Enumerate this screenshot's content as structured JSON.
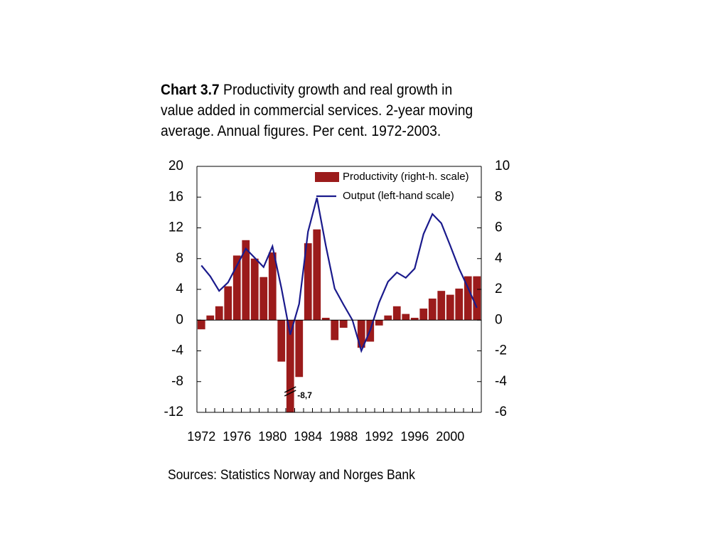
{
  "chart_data": {
    "type": "bar_line",
    "title_label": "Chart 3.7",
    "title": "Productivity growth and real growth in value added in commercial services. 2-year moving average. Annual figures. Per cent. 1972-2003.",
    "categories": [
      "1972",
      null,
      null,
      null,
      "1976",
      null,
      null,
      null,
      "1980",
      null,
      null,
      null,
      "1984",
      null,
      null,
      null,
      "1988",
      null,
      null,
      null,
      "1992",
      null,
      null,
      null,
      "1996",
      null,
      null,
      null,
      "2000",
      null,
      null,
      null
    ],
    "series": [
      {
        "name": "Productivity (right-h. scale)",
        "color": "#9b1b1b",
        "kind": "bar",
        "axis": "y2",
        "values": [
          -0.6,
          0.3,
          0.9,
          2.2,
          4.2,
          5.2,
          4.0,
          2.8,
          4.4,
          -2.7,
          -8.7,
          -3.7,
          5.0,
          5.9,
          0.15,
          -1.3,
          -0.5,
          0,
          -1.8,
          -1.4,
          -0.35,
          0.3,
          0.9,
          0.4,
          0.15,
          0.75,
          1.4,
          1.9,
          1.65,
          2.05,
          2.85,
          2.85
        ],
        "value_labels": [
          null,
          null,
          null,
          null,
          null,
          null,
          null,
          null,
          null,
          null,
          "-8,7",
          null,
          null,
          null,
          null,
          null,
          null,
          null,
          null,
          null,
          null,
          null,
          null,
          null,
          null,
          null,
          null,
          null,
          null,
          null,
          null,
          null
        ]
      },
      {
        "name": "Output (left-hand scale)",
        "color": "#1a1a8c",
        "kind": "line",
        "values": [
          7.1,
          5.7,
          3.8,
          4.9,
          7.1,
          9.3,
          8.1,
          6.9,
          9.6,
          4.2,
          -1.9,
          2.1,
          11.5,
          15.9,
          9.7,
          4.1,
          2.0,
          0,
          -4.0,
          -1.3,
          2.3,
          5.0,
          6.2,
          5.5,
          6.7,
          11.2,
          13.8,
          12.6,
          9.7,
          6.7,
          4.2,
          1.6
        ]
      }
    ],
    "ylim": [
      -12,
      20
    ],
    "yticks": [
      -12,
      -8,
      -4,
      0,
      4,
      8,
      12,
      16,
      20
    ],
    "y2lim": [
      -6,
      10
    ],
    "y2ticks": [
      -6,
      -4,
      -2,
      0,
      2,
      4,
      6,
      8,
      10
    ],
    "legend": "top-right",
    "source": "Sources: Statistics Norway and Norges Bank"
  }
}
